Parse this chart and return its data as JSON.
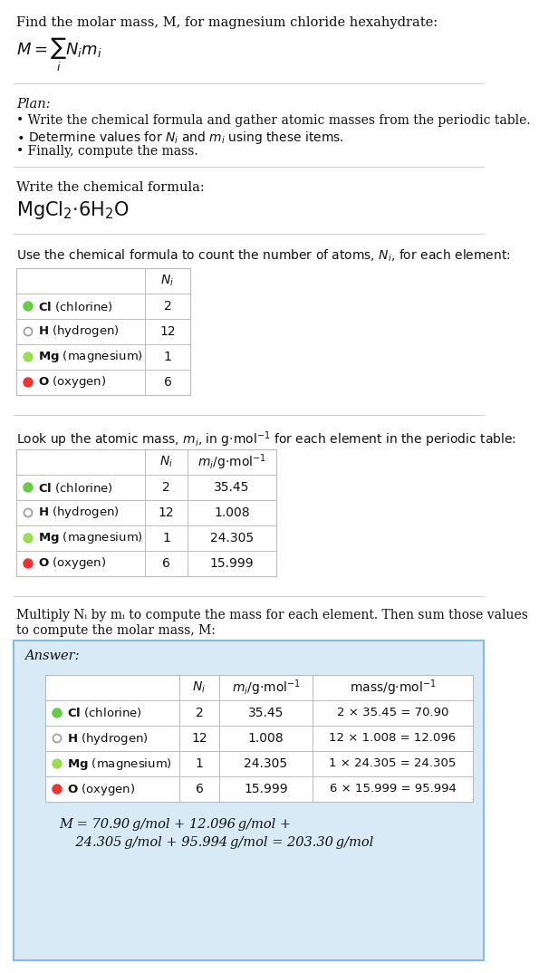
{
  "title_text": "Find the molar mass, M, for magnesium chloride hexahydrate:",
  "bg_color": "#ffffff",
  "plan_header": "Plan:",
  "plan_bullet1": "• Write the chemical formula and gather atomic masses from the periodic table.",
  "plan_bullet2": "• Determine values for Nᵢ and mᵢ using these items.",
  "plan_bullet3": "• Finally, compute the mass.",
  "formula_section_header": "Write the chemical formula:",
  "count_header": "Use the chemical formula to count the number of atoms, Nᵢ, for each element:",
  "lookup_header": "Look up the atomic mass, mᵢ, in g·mol⁻¹ for each element in the periodic table:",
  "multiply_header1": "Multiply Nᵢ by mᵢ to compute the mass for each element. Then sum those values",
  "multiply_header2": "to compute the molar mass, M:",
  "element_symbols": [
    "Cl",
    "H",
    "Mg",
    "O"
  ],
  "element_names": [
    "(chlorine)",
    "(hydrogen)",
    "(magnesium)",
    "(oxygen)"
  ],
  "dot_colors": [
    "#66cc44",
    "#ffffff",
    "#99dd55",
    "#ee3333"
  ],
  "dot_outlines": [
    "#66cc44",
    "#999999",
    "#99dd55",
    "#ee3333"
  ],
  "dot_filled": [
    true,
    false,
    true,
    true
  ],
  "N_i": [
    "2",
    "12",
    "1",
    "6"
  ],
  "m_i": [
    "35.45",
    "1.008",
    "24.305",
    "15.999"
  ],
  "mass_expr": [
    "2 × 35.45 = 70.90",
    "12 × 1.008 = 12.096",
    "1 × 24.305 = 24.305",
    "6 × 15.999 = 95.994"
  ],
  "answer_box_color": "#d8eaf5",
  "answer_box_border": "#88bbdd",
  "table_border": "#bbbbbb",
  "sep_color": "#cccccc",
  "font_color": "#111111",
  "final_line1": "M = 70.90 g/mol + 12.096 g/mol +",
  "final_line2": "    24.305 g/mol + 95.994 g/mol = 203.30 g/mol"
}
